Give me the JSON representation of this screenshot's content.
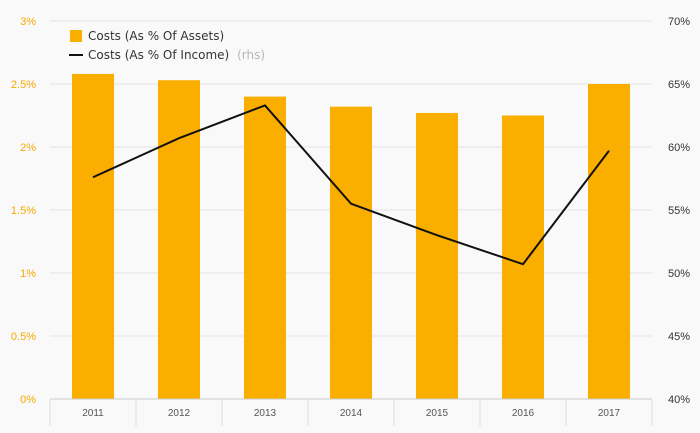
{
  "chart_data": {
    "type": "bar",
    "categories": [
      "2011",
      "2012",
      "2013",
      "2014",
      "2015",
      "2016",
      "2017"
    ],
    "series": [
      {
        "name": "Costs (As % Of Assets)",
        "kind": "bar",
        "axis": "left",
        "color": "#f9ae00",
        "values": [
          2.58,
          2.53,
          2.4,
          2.32,
          2.27,
          2.25,
          2.5
        ]
      },
      {
        "name": "Costs (As % Of Income)",
        "name_suffix": "(rhs)",
        "kind": "line",
        "axis": "right",
        "color": "#111111",
        "values": [
          57.6,
          60.7,
          63.3,
          55.5,
          53.0,
          50.7,
          59.7
        ]
      }
    ],
    "y_left": {
      "min": 0,
      "max": 3,
      "ticks": [
        "0%",
        "0.5%",
        "1%",
        "1.5%",
        "2%",
        "2.5%",
        "3%"
      ]
    },
    "y_right": {
      "min": 40,
      "max": 70,
      "ticks": [
        "40%",
        "45%",
        "50%",
        "55%",
        "60%",
        "65%",
        "70%"
      ]
    },
    "legend_position": "top-left",
    "grid": true
  }
}
